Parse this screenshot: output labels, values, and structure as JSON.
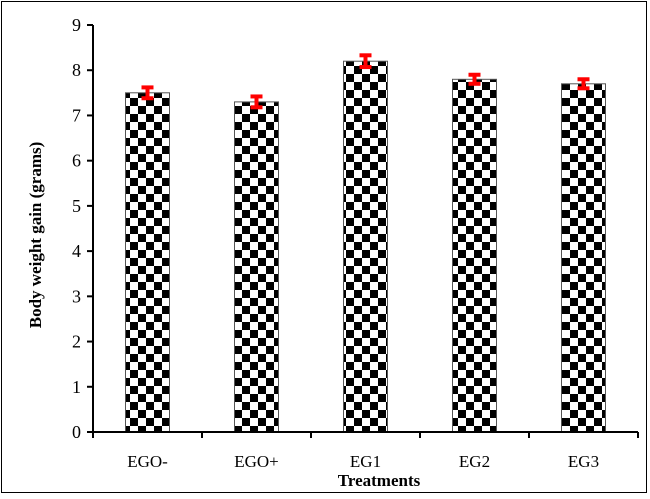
{
  "chart_data": {
    "type": "bar",
    "title": "",
    "xlabel": "Treatments",
    "ylabel": "Body weight gain (grams)",
    "categories": [
      "EGO-",
      "EGO+",
      "EG1",
      "EG2",
      "EG3"
    ],
    "values": [
      7.5,
      7.3,
      8.2,
      7.8,
      7.7
    ],
    "errors": [
      0.12,
      0.12,
      0.13,
      0.1,
      0.1
    ],
    "ylim": [
      0,
      9
    ],
    "yticks": [
      0,
      1,
      2,
      3,
      4,
      5,
      6,
      7,
      8,
      9
    ],
    "grid": false,
    "legend": "none",
    "bar_pattern": "checkerboard",
    "colors": {
      "bar_dark": "#000000",
      "bar_light": "#ffffff",
      "error_bar": "#ff0000",
      "axis": "#000000"
    }
  }
}
